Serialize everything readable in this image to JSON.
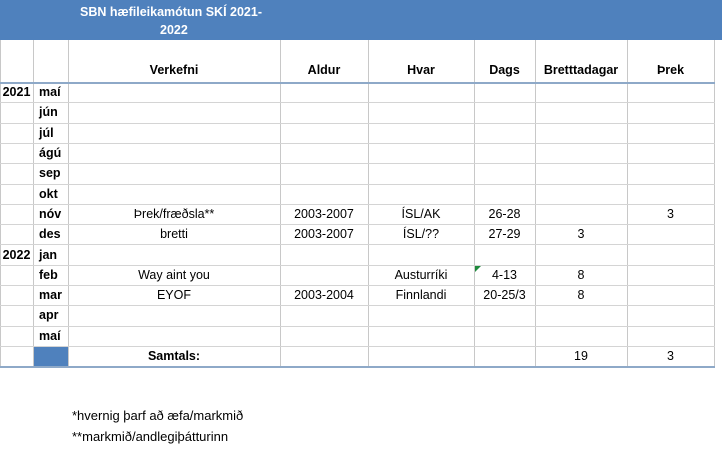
{
  "header": {
    "title_lines": [
      "SBN hæfileikamótun SKÍ 2021-",
      "2022"
    ]
  },
  "table": {
    "columns": [
      "Verkefni",
      "Aldur",
      "Hvar",
      "Dags",
      "Bretttadagar",
      "Þrek"
    ],
    "rows": [
      {
        "year": "2021",
        "month": "maí",
        "cells": [
          null,
          null,
          null,
          null,
          null,
          null
        ]
      },
      {
        "year": null,
        "month": "jún",
        "cells": [
          null,
          null,
          null,
          null,
          null,
          null
        ]
      },
      {
        "year": null,
        "month": "júl",
        "cells": [
          null,
          null,
          null,
          null,
          null,
          null
        ]
      },
      {
        "year": null,
        "month": "ágú",
        "cells": [
          null,
          null,
          null,
          null,
          null,
          null
        ]
      },
      {
        "year": null,
        "month": "sep",
        "cells": [
          null,
          null,
          null,
          null,
          null,
          null
        ]
      },
      {
        "year": null,
        "month": "okt",
        "cells": [
          null,
          null,
          null,
          null,
          null,
          null
        ]
      },
      {
        "year": null,
        "month": "nóv",
        "cells": [
          "Þrek/fræðsla**",
          "2003-2007",
          "ÍSL/AK",
          "26-28",
          null,
          3
        ]
      },
      {
        "year": null,
        "month": "des",
        "cells": [
          "bretti",
          "2003-2007",
          "ÍSL/??",
          "27-29",
          3,
          null
        ]
      },
      {
        "year": "2022",
        "month": "jan",
        "cells": [
          null,
          null,
          null,
          null,
          null,
          null
        ]
      },
      {
        "year": null,
        "month": "feb",
        "cells": [
          "Way aint you",
          null,
          "Austurríki",
          "4-13",
          8,
          null
        ]
      },
      {
        "year": null,
        "month": "mar",
        "cells": [
          "EYOF",
          "2003-2004",
          "Finnlandi",
          "20-25/3",
          8,
          null
        ]
      },
      {
        "year": null,
        "month": "apr",
        "cells": [
          null,
          null,
          null,
          null,
          null,
          null
        ]
      },
      {
        "year": null,
        "month": "maí",
        "cells": [
          null,
          null,
          null,
          null,
          null,
          null
        ]
      }
    ],
    "total": {
      "label": "Samtals:",
      "bretttadagar": 19,
      "threk": 3
    }
  },
  "footnotes": [
    "*hvernig þarf að æfa/markmið",
    "**markmið/andlegiþátturinn"
  ]
}
